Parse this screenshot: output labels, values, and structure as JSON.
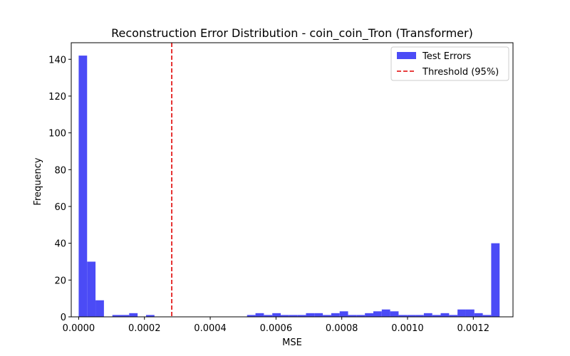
{
  "chart_data": {
    "type": "bar",
    "title": "Reconstruction Error Distribution - coin_coin_Tron (Transformer)",
    "xlabel": "MSE",
    "ylabel": "Frequency",
    "xlim": [
      -2.26e-05,
      0.0013207
    ],
    "ylim": [
      0,
      149
    ],
    "xticks": [
      0.0,
      0.0002,
      0.0004,
      0.0006,
      0.0008,
      0.001,
      0.0012
    ],
    "xtick_labels": [
      "0.0000",
      "0.0002",
      "0.0004",
      "0.0006",
      "0.0008",
      "0.0010",
      "0.0012"
    ],
    "yticks": [
      0,
      20,
      40,
      60,
      80,
      100,
      120,
      140
    ],
    "ytick_labels": [
      "0",
      "20",
      "40",
      "60",
      "80",
      "100",
      "120",
      "140"
    ],
    "bin_start": 0.0,
    "bin_width": 2.56e-05,
    "series": [
      {
        "name": "Test Errors",
        "color": "#4b4bf6",
        "values": [
          142,
          30,
          9,
          0,
          1,
          1,
          2,
          0,
          1,
          0,
          0,
          0,
          0,
          0,
          0,
          0,
          0,
          0,
          0,
          0,
          1,
          2,
          1,
          2,
          1,
          1,
          1,
          2,
          2,
          1,
          2,
          3,
          1,
          1,
          2,
          3,
          4,
          3,
          1,
          1,
          1,
          2,
          1,
          2,
          1,
          4,
          4,
          2,
          1,
          40
        ]
      }
    ],
    "threshold": {
      "name": "Threshold (95%)",
      "x": 0.000283,
      "color": "#e00000"
    },
    "legend_position": "top-right"
  }
}
